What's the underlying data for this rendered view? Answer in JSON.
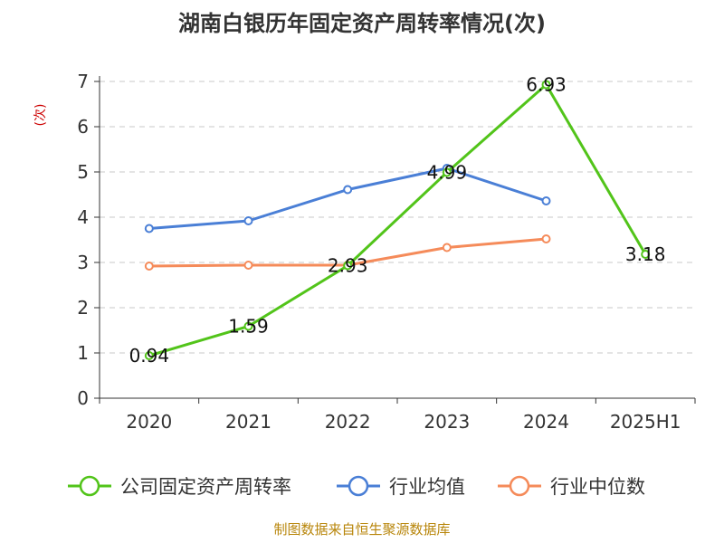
{
  "chart_data": {
    "type": "line",
    "title": "湖南白银历年固定资产周转率情况(次)",
    "ylabel": "(次)",
    "xlabel": "",
    "categories": [
      "2020",
      "2021",
      "2022",
      "2023",
      "2024",
      "2025H1"
    ],
    "ylim": [
      0,
      7
    ],
    "yticks": [
      "0",
      "1",
      "2",
      "3",
      "4",
      "5",
      "6",
      "7"
    ],
    "grid": true,
    "legend_position": "bottom",
    "series": [
      {
        "name": "公司固定资产周转率",
        "color": "#52c41a",
        "values": [
          0.94,
          1.59,
          2.93,
          4.99,
          6.93,
          3.18
        ],
        "labels": [
          "0.94",
          "1.59",
          "2.93",
          "4.99",
          "6.93",
          "3.18"
        ]
      },
      {
        "name": "行业均值",
        "color": "#4a7fd6",
        "values": [
          3.75,
          3.92,
          4.61,
          5.08,
          4.36,
          null
        ]
      },
      {
        "name": "行业中位数",
        "color": "#f58b5a",
        "values": [
          2.92,
          2.94,
          2.94,
          3.33,
          3.52,
          null
        ]
      }
    ],
    "source": "制图数据来自恒生聚源数据库"
  }
}
